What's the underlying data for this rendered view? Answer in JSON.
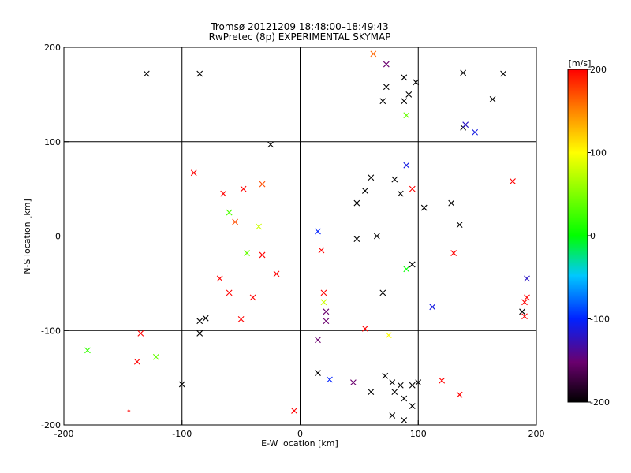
{
  "chart_data": {
    "type": "scatter",
    "title": "Tromsø 20121209 18:48:00–18:49:43",
    "subtitle": "RwPretec (8p) EXPERIMENTAL SKYMAP",
    "xlabel": "E-W location [km]",
    "ylabel": "N-S location [km]",
    "xlim": [
      -200,
      200
    ],
    "ylim": [
      -200,
      200
    ],
    "xticks": [
      "-200",
      "-100",
      "0",
      "100",
      "200"
    ],
    "yticks": [
      "-200",
      "-100",
      "0",
      "100",
      "200"
    ],
    "grid": true,
    "grid_values": [
      -100,
      0,
      100
    ],
    "marker_styles": [
      "plus (small)",
      "cross (large)"
    ],
    "colorbar": {
      "label": "[m/s]",
      "range": [
        -200,
        200
      ],
      "ticks": [
        "-200",
        "-100",
        "0",
        "100",
        "200"
      ],
      "colormap": "rainbow: black(-200) → purple → blue(-100) → cyan → green(0) → yellow(100) → orange → red(200)"
    },
    "points": [
      {
        "x": -130,
        "y": 172,
        "v": -200,
        "m": "x"
      },
      {
        "x": -85,
        "y": 172,
        "v": -200,
        "m": "x"
      },
      {
        "x": 73,
        "y": 182,
        "v": -150,
        "m": "x"
      },
      {
        "x": 88,
        "y": 168,
        "v": -200,
        "m": "x"
      },
      {
        "x": 98,
        "y": 163,
        "v": -200,
        "m": "x"
      },
      {
        "x": 138,
        "y": 173,
        "v": -200,
        "m": "x"
      },
      {
        "x": 172,
        "y": 172,
        "v": -200,
        "m": "x"
      },
      {
        "x": 163,
        "y": 145,
        "v": -200,
        "m": "x"
      },
      {
        "x": 62,
        "y": 193,
        "v": 160,
        "m": "x"
      },
      {
        "x": 73,
        "y": 158,
        "v": -200,
        "m": "x"
      },
      {
        "x": 70,
        "y": 143,
        "v": -200,
        "m": "x"
      },
      {
        "x": 88,
        "y": 143,
        "v": -200,
        "m": "x"
      },
      {
        "x": 92,
        "y": 150,
        "v": -200,
        "m": "x"
      },
      {
        "x": 90,
        "y": 128,
        "v": 40,
        "m": "x"
      },
      {
        "x": 138,
        "y": 115,
        "v": -200,
        "m": "x"
      },
      {
        "x": 140,
        "y": 118,
        "v": -120,
        "m": "x"
      },
      {
        "x": 148,
        "y": 110,
        "v": -110,
        "m": "x"
      },
      {
        "x": -25,
        "y": 97,
        "v": -200,
        "m": "x"
      },
      {
        "x": -90,
        "y": 67,
        "v": 200,
        "m": "x"
      },
      {
        "x": -65,
        "y": 45,
        "v": 200,
        "m": "x"
      },
      {
        "x": -48,
        "y": 50,
        "v": 200,
        "m": "x"
      },
      {
        "x": -32,
        "y": 55,
        "v": 170,
        "m": "x"
      },
      {
        "x": 60,
        "y": 62,
        "v": -200,
        "m": "x"
      },
      {
        "x": 80,
        "y": 60,
        "v": -200,
        "m": "x"
      },
      {
        "x": 90,
        "y": 75,
        "v": -110,
        "m": "x"
      },
      {
        "x": 85,
        "y": 45,
        "v": -200,
        "m": "x"
      },
      {
        "x": 95,
        "y": 50,
        "v": 200,
        "m": "x"
      },
      {
        "x": 105,
        "y": 30,
        "v": -200,
        "m": "x"
      },
      {
        "x": 128,
        "y": 35,
        "v": -200,
        "m": "x"
      },
      {
        "x": 135,
        "y": 12,
        "v": -200,
        "m": "x"
      },
      {
        "x": 48,
        "y": 35,
        "v": -200,
        "m": "x"
      },
      {
        "x": 55,
        "y": 48,
        "v": -200,
        "m": "x"
      },
      {
        "x": 180,
        "y": 58,
        "v": 200,
        "m": "x"
      },
      {
        "x": -60,
        "y": 25,
        "v": 30,
        "m": "x"
      },
      {
        "x": -35,
        "y": 10,
        "v": 80,
        "m": "x"
      },
      {
        "x": -55,
        "y": 15,
        "v": 170,
        "m": "x"
      },
      {
        "x": 15,
        "y": 5,
        "v": -100,
        "m": "x"
      },
      {
        "x": 48,
        "y": -3,
        "v": -200,
        "m": "x"
      },
      {
        "x": 65,
        "y": 0,
        "v": -200,
        "m": "x"
      },
      {
        "x": -45,
        "y": -18,
        "v": 40,
        "m": "x"
      },
      {
        "x": -32,
        "y": -20,
        "v": 200,
        "m": "x"
      },
      {
        "x": 18,
        "y": -15,
        "v": 200,
        "m": "x"
      },
      {
        "x": 130,
        "y": -18,
        "v": 200,
        "m": "x"
      },
      {
        "x": 95,
        "y": -30,
        "v": -200,
        "m": "x"
      },
      {
        "x": 90,
        "y": -35,
        "v": 0,
        "m": "x"
      },
      {
        "x": -68,
        "y": -45,
        "v": 200,
        "m": "x"
      },
      {
        "x": -20,
        "y": -40,
        "v": 200,
        "m": "x"
      },
      {
        "x": -60,
        "y": -60,
        "v": 200,
        "m": "x"
      },
      {
        "x": -40,
        "y": -65,
        "v": 200,
        "m": "x"
      },
      {
        "x": 20,
        "y": -60,
        "v": 200,
        "m": "x"
      },
      {
        "x": 70,
        "y": -60,
        "v": -200,
        "m": "x"
      },
      {
        "x": 20,
        "y": -70,
        "v": 80,
        "m": "x"
      },
      {
        "x": 22,
        "y": -80,
        "v": -150,
        "m": "x"
      },
      {
        "x": 22,
        "y": -90,
        "v": -150,
        "m": "x"
      },
      {
        "x": -50,
        "y": -88,
        "v": 200,
        "m": "x"
      },
      {
        "x": -85,
        "y": -90,
        "v": -200,
        "m": "x"
      },
      {
        "x": -80,
        "y": -87,
        "v": -200,
        "m": "x"
      },
      {
        "x": -85,
        "y": -103,
        "v": -200,
        "m": "x"
      },
      {
        "x": -135,
        "y": -103,
        "v": 200,
        "m": "x"
      },
      {
        "x": -138,
        "y": -133,
        "v": 200,
        "m": "x"
      },
      {
        "x": -122,
        "y": -128,
        "v": 40,
        "m": "x"
      },
      {
        "x": -180,
        "y": -121,
        "v": 20,
        "m": "x"
      },
      {
        "x": 55,
        "y": -98,
        "v": 200,
        "m": "x"
      },
      {
        "x": 75,
        "y": -105,
        "v": 100,
        "m": "x"
      },
      {
        "x": 15,
        "y": -110,
        "v": -150,
        "m": "x"
      },
      {
        "x": 15,
        "y": -145,
        "v": -200,
        "m": "x"
      },
      {
        "x": 25,
        "y": -152,
        "v": -100,
        "m": "x"
      },
      {
        "x": 45,
        "y": -155,
        "v": -150,
        "m": "x"
      },
      {
        "x": 60,
        "y": -165,
        "v": -200,
        "m": "x"
      },
      {
        "x": 72,
        "y": -148,
        "v": -200,
        "m": "x"
      },
      {
        "x": 78,
        "y": -155,
        "v": -200,
        "m": "x"
      },
      {
        "x": 85,
        "y": -158,
        "v": -200,
        "m": "x"
      },
      {
        "x": 95,
        "y": -158,
        "v": -200,
        "m": "x"
      },
      {
        "x": 100,
        "y": -155,
        "v": -200,
        "m": "x"
      },
      {
        "x": 80,
        "y": -165,
        "v": -200,
        "m": "x"
      },
      {
        "x": 88,
        "y": -172,
        "v": -200,
        "m": "x"
      },
      {
        "x": 95,
        "y": -180,
        "v": -200,
        "m": "x"
      },
      {
        "x": 78,
        "y": -190,
        "v": -200,
        "m": "x"
      },
      {
        "x": 88,
        "y": -195,
        "v": -200,
        "m": "x"
      },
      {
        "x": 120,
        "y": -153,
        "v": 200,
        "m": "x"
      },
      {
        "x": 135,
        "y": -168,
        "v": 200,
        "m": "x"
      },
      {
        "x": 112,
        "y": -75,
        "v": -110,
        "m": "x"
      },
      {
        "x": 192,
        "y": -45,
        "v": -120,
        "m": "x"
      },
      {
        "x": 192,
        "y": -65,
        "v": 200,
        "m": "x"
      },
      {
        "x": 190,
        "y": -70,
        "v": 200,
        "m": "x"
      },
      {
        "x": 190,
        "y": -85,
        "v": 200,
        "m": "x"
      },
      {
        "x": 188,
        "y": -80,
        "v": -200,
        "m": "x"
      },
      {
        "x": -5,
        "y": -185,
        "v": 200,
        "m": "x"
      },
      {
        "x": -145,
        "y": -185,
        "v": 200,
        "m": "+"
      },
      {
        "x": -100,
        "y": -157,
        "v": -200,
        "m": "x"
      }
    ]
  }
}
